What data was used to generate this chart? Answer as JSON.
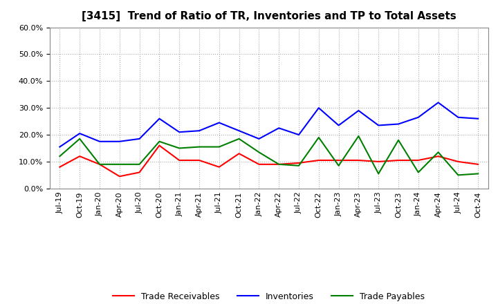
{
  "title": "[3415]  Trend of Ratio of TR, Inventories and TP to Total Assets",
  "x_labels": [
    "Jul-19",
    "Oct-19",
    "Jan-20",
    "Apr-20",
    "Jul-20",
    "Oct-20",
    "Jan-21",
    "Apr-21",
    "Jul-21",
    "Oct-21",
    "Jan-22",
    "Apr-22",
    "Jul-22",
    "Oct-22",
    "Jan-23",
    "Apr-23",
    "Jul-23",
    "Oct-23",
    "Jan-24",
    "Apr-24",
    "Jul-24",
    "Oct-24"
  ],
  "trade_receivables": [
    0.08,
    0.12,
    0.09,
    0.045,
    0.06,
    0.16,
    0.105,
    0.105,
    0.08,
    0.13,
    0.09,
    0.09,
    0.095,
    0.105,
    0.105,
    0.105,
    0.1,
    0.105,
    0.105,
    0.12,
    0.1,
    0.09
  ],
  "inventories": [
    0.155,
    0.205,
    0.175,
    0.175,
    0.185,
    0.26,
    0.21,
    0.215,
    0.245,
    0.215,
    0.185,
    0.225,
    0.2,
    0.3,
    0.235,
    0.29,
    0.235,
    0.24,
    0.265,
    0.32,
    0.265,
    0.26
  ],
  "trade_payables": [
    0.12,
    0.185,
    0.09,
    0.09,
    0.09,
    0.175,
    0.15,
    0.155,
    0.155,
    0.185,
    0.135,
    0.09,
    0.085,
    0.19,
    0.085,
    0.195,
    0.055,
    0.18,
    0.06,
    0.135,
    0.05,
    0.055
  ],
  "tr_color": "#ff0000",
  "inv_color": "#0000ff",
  "tp_color": "#008000",
  "ylim": [
    0.0,
    0.6
  ],
  "yticks": [
    0.0,
    0.1,
    0.2,
    0.3,
    0.4,
    0.5,
    0.6
  ],
  "background_color": "#ffffff",
  "grid_color": "#aaaaaa",
  "title_fontsize": 11,
  "tick_fontsize": 8,
  "legend_labels": [
    "Trade Receivables",
    "Inventories",
    "Trade Payables"
  ]
}
